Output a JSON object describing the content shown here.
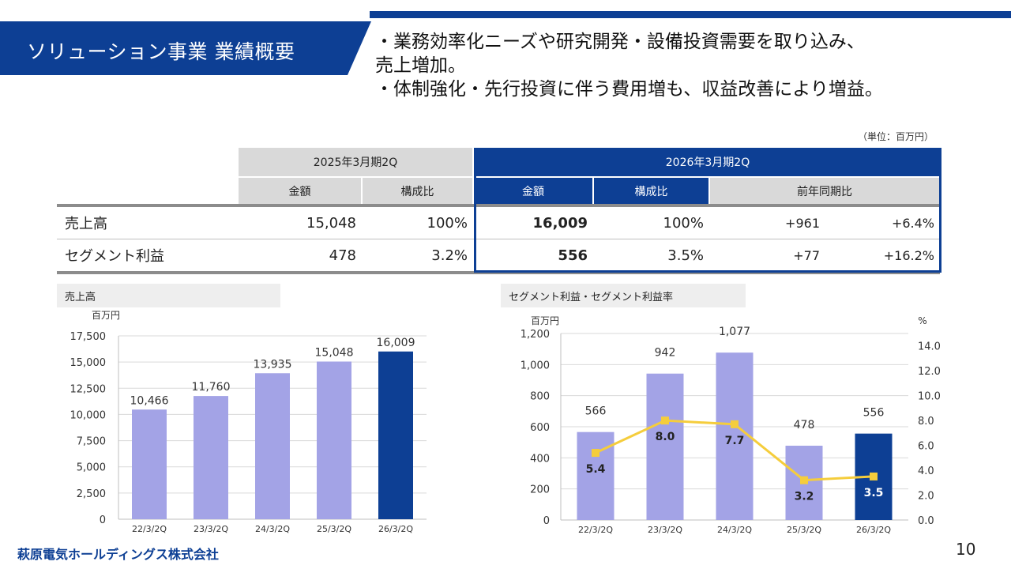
{
  "header": {
    "title": "ソリューション事業 業績概要",
    "bullets": [
      "・業務効率化ニーズや研究開発・設備投資需要を取り込み、",
      "売上増加。",
      "・体制強化・先行投資に伴う費用増も、収益改善により増益。"
    ]
  },
  "unit_note": "（単位：百万円）",
  "table": {
    "period_prev": "2025年3月期2Q",
    "period_curr": "2026年3月期2Q",
    "col_amount": "金額",
    "col_ratio": "構成比",
    "col_yoy": "前年同期比",
    "rows": [
      {
        "label": "売上高",
        "prev_amount": "15,048",
        "prev_ratio": "100%",
        "curr_amount": "16,009",
        "curr_ratio": "100%",
        "yoy_abs": "+961",
        "yoy_pct": "+6.4%"
      },
      {
        "label": "セグメント利益",
        "prev_amount": "478",
        "prev_ratio": "3.2%",
        "curr_amount": "556",
        "curr_ratio": "3.5%",
        "yoy_abs": "+77",
        "yoy_pct": "+16.2%"
      }
    ]
  },
  "colors": {
    "brand": "#0d3f94",
    "bar": "#a3a3e6",
    "line": "#f5cd3c"
  },
  "chart_data": [
    {
      "type": "bar",
      "title": "売上高",
      "ylabel": "百万円",
      "categories": [
        "22/3/2Q",
        "23/3/2Q",
        "24/3/2Q",
        "25/3/2Q",
        "26/3/2Q"
      ],
      "values": [
        10466,
        11760,
        13935,
        15048,
        16009
      ],
      "value_labels": [
        "10,466",
        "11,760",
        "13,935",
        "15,048",
        "16,009"
      ],
      "ylim": [
        0,
        17500
      ],
      "yticks": [
        0,
        2500,
        5000,
        7500,
        10000,
        12500,
        15000,
        17500
      ],
      "ytick_labels": [
        "0",
        "2,500",
        "5,000",
        "7,500",
        "10,000",
        "12,500",
        "15,000",
        "17,500"
      ],
      "highlight_last": true
    },
    {
      "type": "bar+line",
      "title": "セグメント利益・セグメント利益率",
      "ylabel_left": "百万円",
      "ylabel_right": "%",
      "categories": [
        "22/3/2Q",
        "23/3/2Q",
        "24/3/2Q",
        "25/3/2Q",
        "26/3/2Q"
      ],
      "series": [
        {
          "name": "セグメント利益",
          "type": "bar",
          "values": [
            566,
            942,
            1077,
            478,
            556
          ],
          "labels": [
            "566",
            "942",
            "1,077",
            "478",
            "556"
          ]
        },
        {
          "name": "セグメント利益率",
          "type": "line",
          "values": [
            5.4,
            8.0,
            7.7,
            3.2,
            3.5
          ],
          "labels": [
            "5.4",
            "8.0",
            "7.7",
            "3.2",
            "3.5"
          ]
        }
      ],
      "ylim_left": [
        0,
        1200
      ],
      "yticks_left": [
        0,
        200,
        400,
        600,
        800,
        1000,
        1200
      ],
      "ytick_labels_left": [
        "0",
        "200",
        "400",
        "600",
        "800",
        "1,000",
        "1,200"
      ],
      "ylim_right": [
        0,
        15
      ],
      "yticks_right": [
        0,
        2,
        4,
        6,
        8,
        10,
        12,
        14
      ],
      "ytick_labels_right": [
        "0.0",
        "2.0",
        "4.0",
        "6.0",
        "8.0",
        "10.0",
        "12.0",
        "14.0"
      ],
      "highlight_last": true
    }
  ],
  "footer": {
    "company": "萩原電気ホールディングス株式会社",
    "page": "10"
  }
}
